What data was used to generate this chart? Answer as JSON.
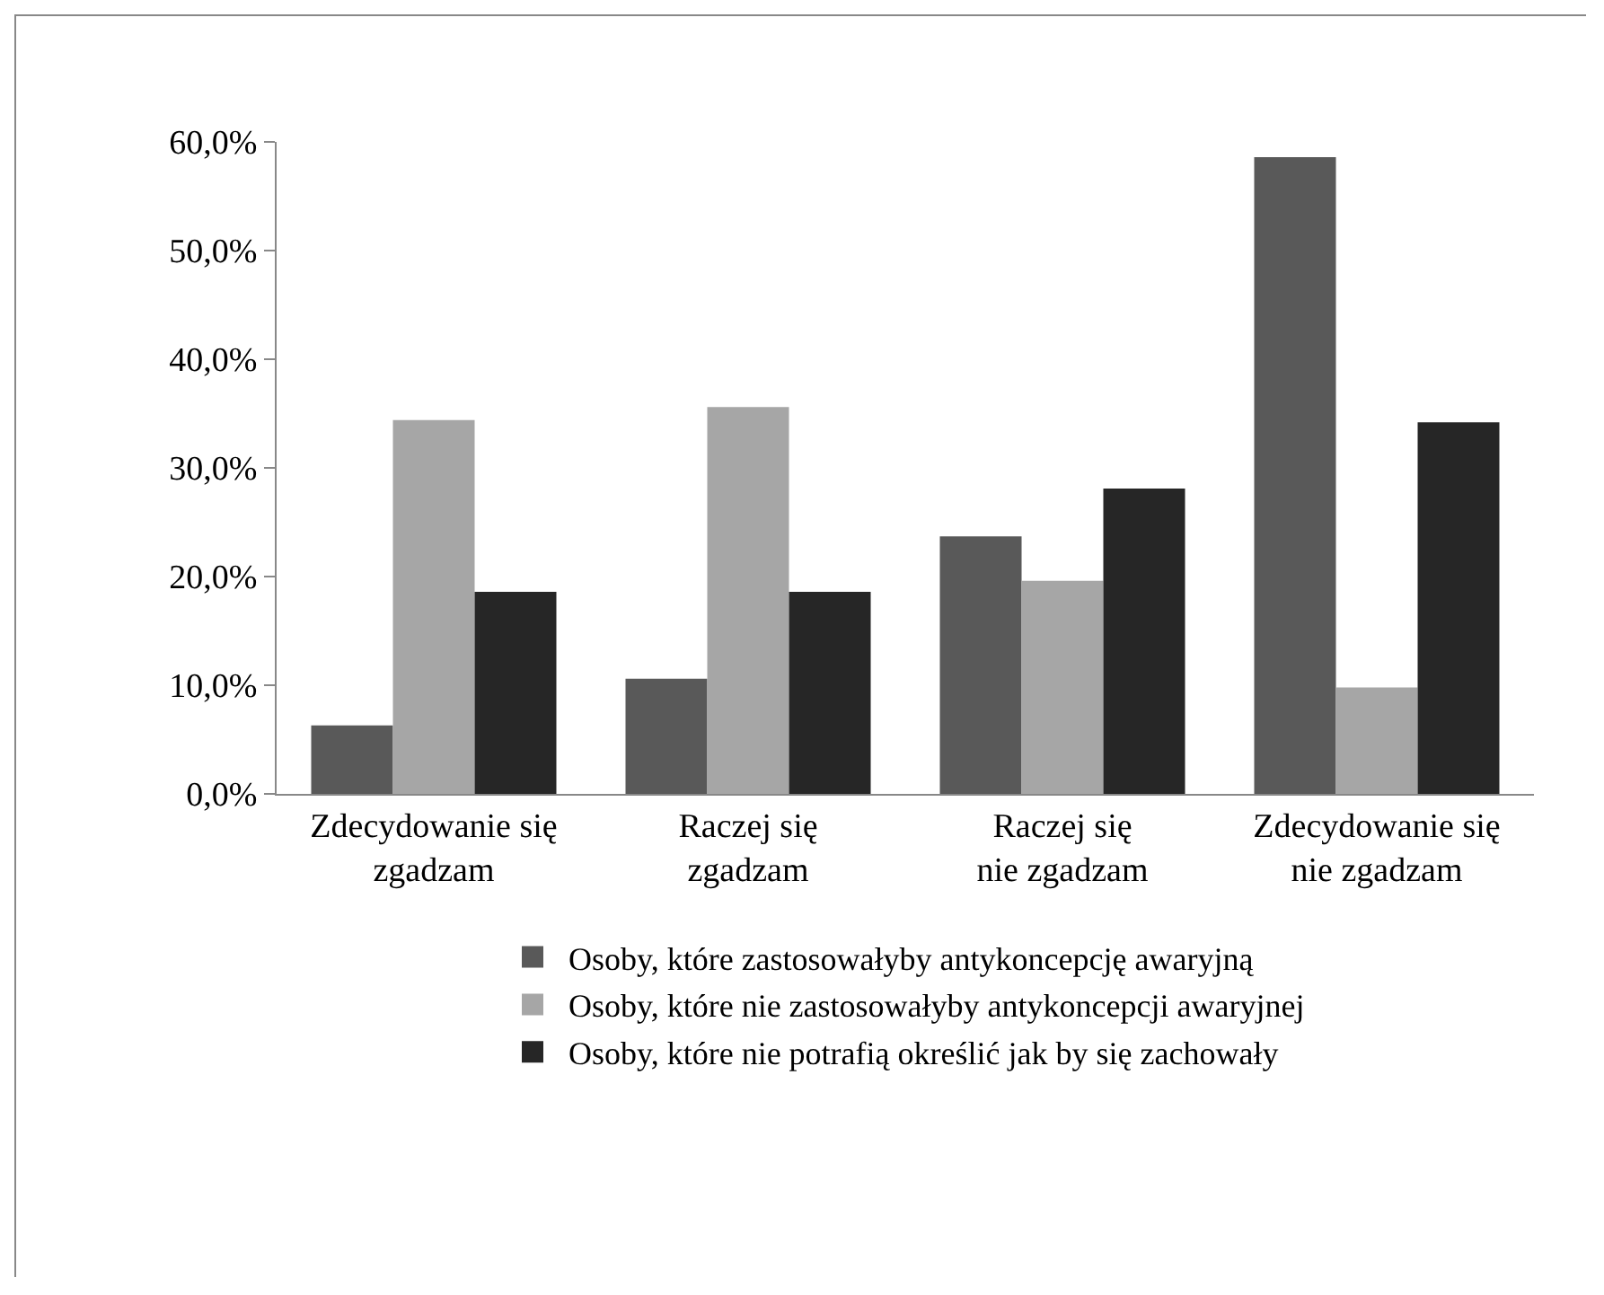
{
  "chart_data": {
    "type": "bar",
    "categories": [
      "Zdecydowanie się zgadzam",
      "Raczej się zgadzam",
      "Raczej się nie zgadzam",
      "Zdecydowanie się nie zgadzam"
    ],
    "series": [
      {
        "name": "Osoby, które zastosowałyby antykoncepcję awaryjną",
        "color": "#595959",
        "values": [
          6.3,
          10.6,
          23.7,
          58.6
        ]
      },
      {
        "name": "Osoby, które nie zastosowałyby antykoncepcji awaryjnej",
        "color": "#a6a6a6",
        "values": [
          34.4,
          35.6,
          19.6,
          9.8
        ]
      },
      {
        "name": "Osoby, które nie potrafią określić jak by się zachowały",
        "color": "#262626",
        "values": [
          18.6,
          18.6,
          28.1,
          34.2
        ]
      }
    ],
    "ylim": [
      0,
      60
    ],
    "yticks": [
      {
        "value": 0,
        "label": "0,0%"
      },
      {
        "value": 10,
        "label": "10,0%"
      },
      {
        "value": 20,
        "label": "20,0%"
      },
      {
        "value": 30,
        "label": "30,0%"
      },
      {
        "value": 40,
        "label": "40,0%"
      },
      {
        "value": 50,
        "label": "50,0%"
      },
      {
        "value": 60,
        "label": "60,0%"
      }
    ],
    "grid": false,
    "legend": "bottom"
  }
}
